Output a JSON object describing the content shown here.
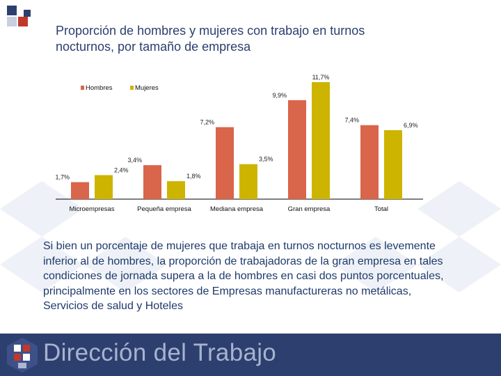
{
  "title": {
    "line1": "Proporción de hombres y mujeres con trabajo en turnos",
    "line2": "nocturnos, por  tamaño de empresa"
  },
  "chart_data": {
    "type": "bar",
    "title": "Proporción de hombres y mujeres con trabajo en turnos nocturnos, por  tamaño de empresa",
    "categories": [
      "Microempresas",
      "Pequeña empresa",
      "Mediana empresa",
      "Gran empresa",
      "Total"
    ],
    "series": [
      {
        "name": "Hombres",
        "color": "#d9654a",
        "values": [
          1.7,
          3.4,
          7.2,
          9.9,
          7.4
        ],
        "labels": [
          "1,7%",
          "3,4%",
          "7,2%",
          "9,9%",
          "7,4%"
        ]
      },
      {
        "name": "Mujeres",
        "color": "#cdb400",
        "values": [
          2.4,
          1.8,
          3.5,
          11.7,
          6.9
        ],
        "labels": [
          "2,4%",
          "1,8%",
          "3,5%",
          "11,7%",
          "6,9%"
        ]
      }
    ],
    "legend": "top-left",
    "grid": false,
    "xlabel": "",
    "ylabel": "",
    "ylim": [
      0,
      11.7
    ]
  },
  "body": {
    "paragraph": "Si bien un porcentaje de mujeres  que trabaja en turnos nocturnos es levemente inferior al de hombres, la proporción de trabajadoras de la gran empresa en tales condiciones de jornada supera a la de hombres en casi dos puntos porcentuales, principalmente en los sectores de Empresas manufactureras no metálicas, Servicios de salud y Hoteles"
  },
  "footer": {
    "org_name": "Dirección del Trabajo",
    "color": "#2d3f6e"
  }
}
